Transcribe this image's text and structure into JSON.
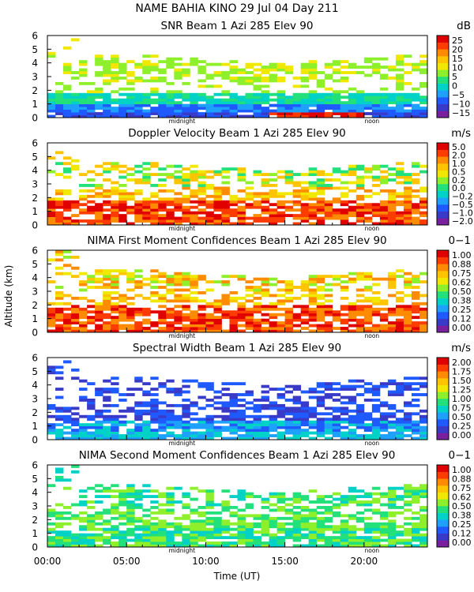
{
  "header": {
    "title": "NAME BAHIA KINO  29 Jul 04 Day 211"
  },
  "chart_data": {
    "type": "heatmap",
    "title": "NAME BAHIA KINO  29 Jul 04 Day 211",
    "ylabel": "Altitude (km)",
    "xlabel": "Time (UT)",
    "xlim_hours": [
      0,
      24
    ],
    "x_ticks": [
      "00:00",
      "05:00",
      "10:00",
      "15:00",
      "20:00"
    ],
    "x_tick_hours": [
      0,
      5,
      10,
      15,
      20
    ],
    "markers": [
      {
        "label": "midnight",
        "hour": 8.5
      },
      {
        "label": "noon",
        "hour": 20.5
      }
    ],
    "panels": [
      {
        "title": "SNR Beam 1 Azi 285 Elev 90",
        "unit": "dB",
        "ylim": [
          0,
          6
        ],
        "y_ticks": [
          "0",
          "1",
          "2",
          "3",
          "4",
          "5",
          "6"
        ],
        "colorbar_ticks": [
          "25",
          "20",
          "15",
          "10",
          "5",
          "0",
          "−5",
          "−10",
          "−15"
        ],
        "colorbar_range": [
          -15,
          25
        ],
        "field": "snr"
      },
      {
        "title": "Doppler Velocity Beam 1 Azi 285 Elev 90",
        "unit": "m/s",
        "ylim": [
          0,
          6
        ],
        "y_ticks": [
          "0",
          "1",
          "2",
          "3",
          "4",
          "5",
          "6"
        ],
        "colorbar_ticks": [
          "5.0",
          "2.0",
          "1.0",
          "0.5",
          "0.2",
          "0.0",
          "−0.2",
          "−0.5",
          "−1.0",
          "−2.0"
        ],
        "colorbar_range": [
          -2,
          5
        ],
        "field": "doppler"
      },
      {
        "title": "NIMA First Moment Confidences Beam 1 Azi 285 Elev 90",
        "unit": "0−1",
        "ylim": [
          0,
          6
        ],
        "y_ticks": [
          "0",
          "1",
          "2",
          "3",
          "4",
          "5",
          "6"
        ],
        "colorbar_ticks": [
          "1.00",
          "0.88",
          "0.75",
          "0.62",
          "0.50",
          "0.38",
          "0.25",
          "0.12",
          "0.00"
        ],
        "colorbar_range": [
          0,
          1
        ],
        "field": "conf1"
      },
      {
        "title": "Spectral Width Beam 1 Azi 285 Elev 90",
        "unit": "m/s",
        "ylim": [
          0,
          6
        ],
        "y_ticks": [
          "0",
          "1",
          "2",
          "3",
          "4",
          "5",
          "6"
        ],
        "colorbar_ticks": [
          "2.00",
          "1.75",
          "1.50",
          "1.25",
          "1.00",
          "0.75",
          "0.50",
          "0.25",
          "0.00"
        ],
        "colorbar_range": [
          0,
          2
        ],
        "field": "width"
      },
      {
        "title": "NIMA Second Moment Confidences Beam 1 Azi 285 Elev 90",
        "unit": "0−1",
        "ylim": [
          0,
          6
        ],
        "y_ticks": [
          "0",
          "1",
          "2",
          "3",
          "4",
          "5",
          "6"
        ],
        "colorbar_ticks": [
          "1.00",
          "0.88",
          "0.75",
          "0.62",
          "0.50",
          "0.38",
          "0.25",
          "0.12",
          "0.00"
        ],
        "colorbar_range": [
          0,
          1
        ],
        "field": "conf2"
      }
    ]
  },
  "colors": {
    "palette": [
      "#7a1fa0",
      "#3a3ac8",
      "#1e5aff",
      "#1ea0ff",
      "#00d2c8",
      "#22e07a",
      "#8ef02a",
      "#f0e800",
      "#ffc400",
      "#ff8c00",
      "#ff3c00",
      "#e00000"
    ]
  }
}
